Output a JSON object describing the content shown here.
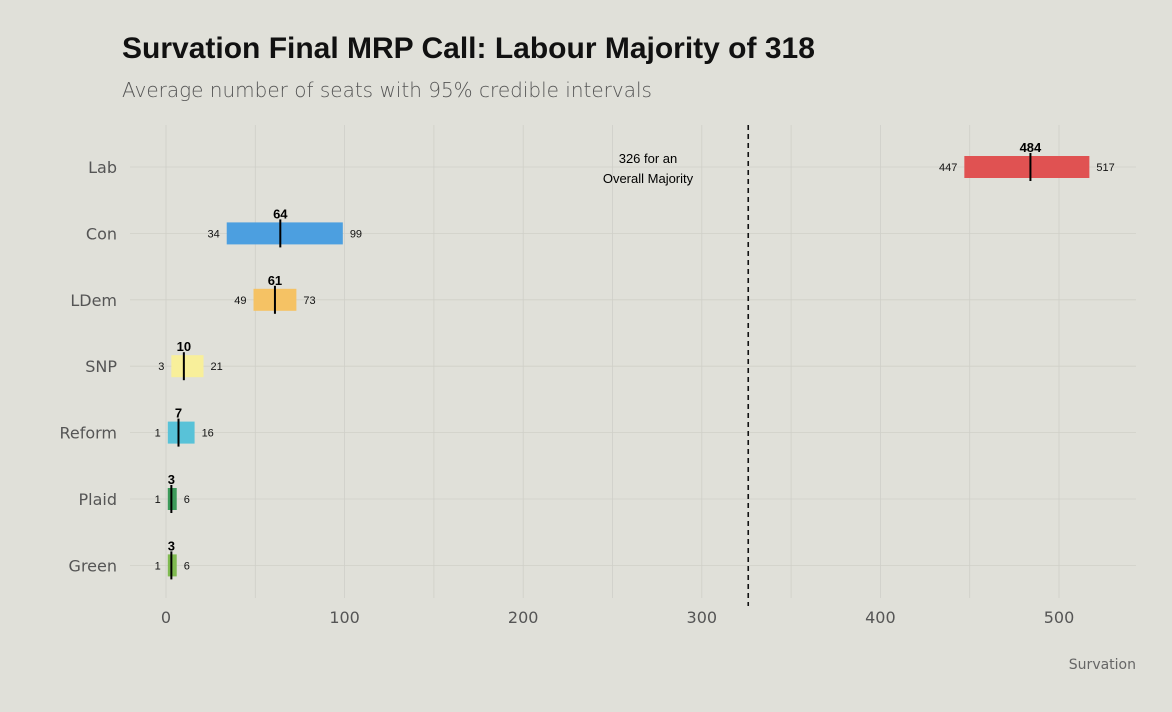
{
  "title": "Survation Final MRP Call: Labour Majority of 318",
  "subtitle": "Average number of seats with 95% credible intervals",
  "caption": "Survation",
  "chart_data": {
    "type": "bar",
    "orientation": "horizontal",
    "title": "Survation Final MRP Call: Labour Majority of 318",
    "subtitle": "Average number of seats with 95% credible intervals",
    "xlabel": "",
    "ylabel": "",
    "xlim": [
      -12,
      545
    ],
    "xticks": [
      0,
      100,
      200,
      300,
      400,
      500
    ],
    "grid": true,
    "categories": [
      "Lab",
      "Con",
      "LDem",
      "SNP",
      "Reform",
      "Plaid",
      "Green"
    ],
    "series": [
      {
        "category": "Lab",
        "estimate": 484,
        "low": 447,
        "high": 517,
        "color": "#e05252"
      },
      {
        "category": "Con",
        "estimate": 64,
        "low": 34,
        "high": 99,
        "color": "#4c9fe0"
      },
      {
        "category": "LDem",
        "estimate": 61,
        "low": 49,
        "high": 73,
        "color": "#f5c264"
      },
      {
        "category": "SNP",
        "estimate": 10,
        "low": 3,
        "high": 21,
        "color": "#f8ef9a"
      },
      {
        "category": "Reform",
        "estimate": 7,
        "low": 1,
        "high": 16,
        "color": "#58c2d8"
      },
      {
        "category": "Plaid",
        "estimate": 3,
        "low": 1,
        "high": 6,
        "color": "#3d9a5a"
      },
      {
        "category": "Green",
        "estimate": 3,
        "low": 1,
        "high": 6,
        "color": "#7fba50"
      }
    ],
    "reference_line": {
      "x": 326,
      "label_line1": "326 for an",
      "label_line2": "Overall Majority",
      "style": "dashed"
    }
  }
}
